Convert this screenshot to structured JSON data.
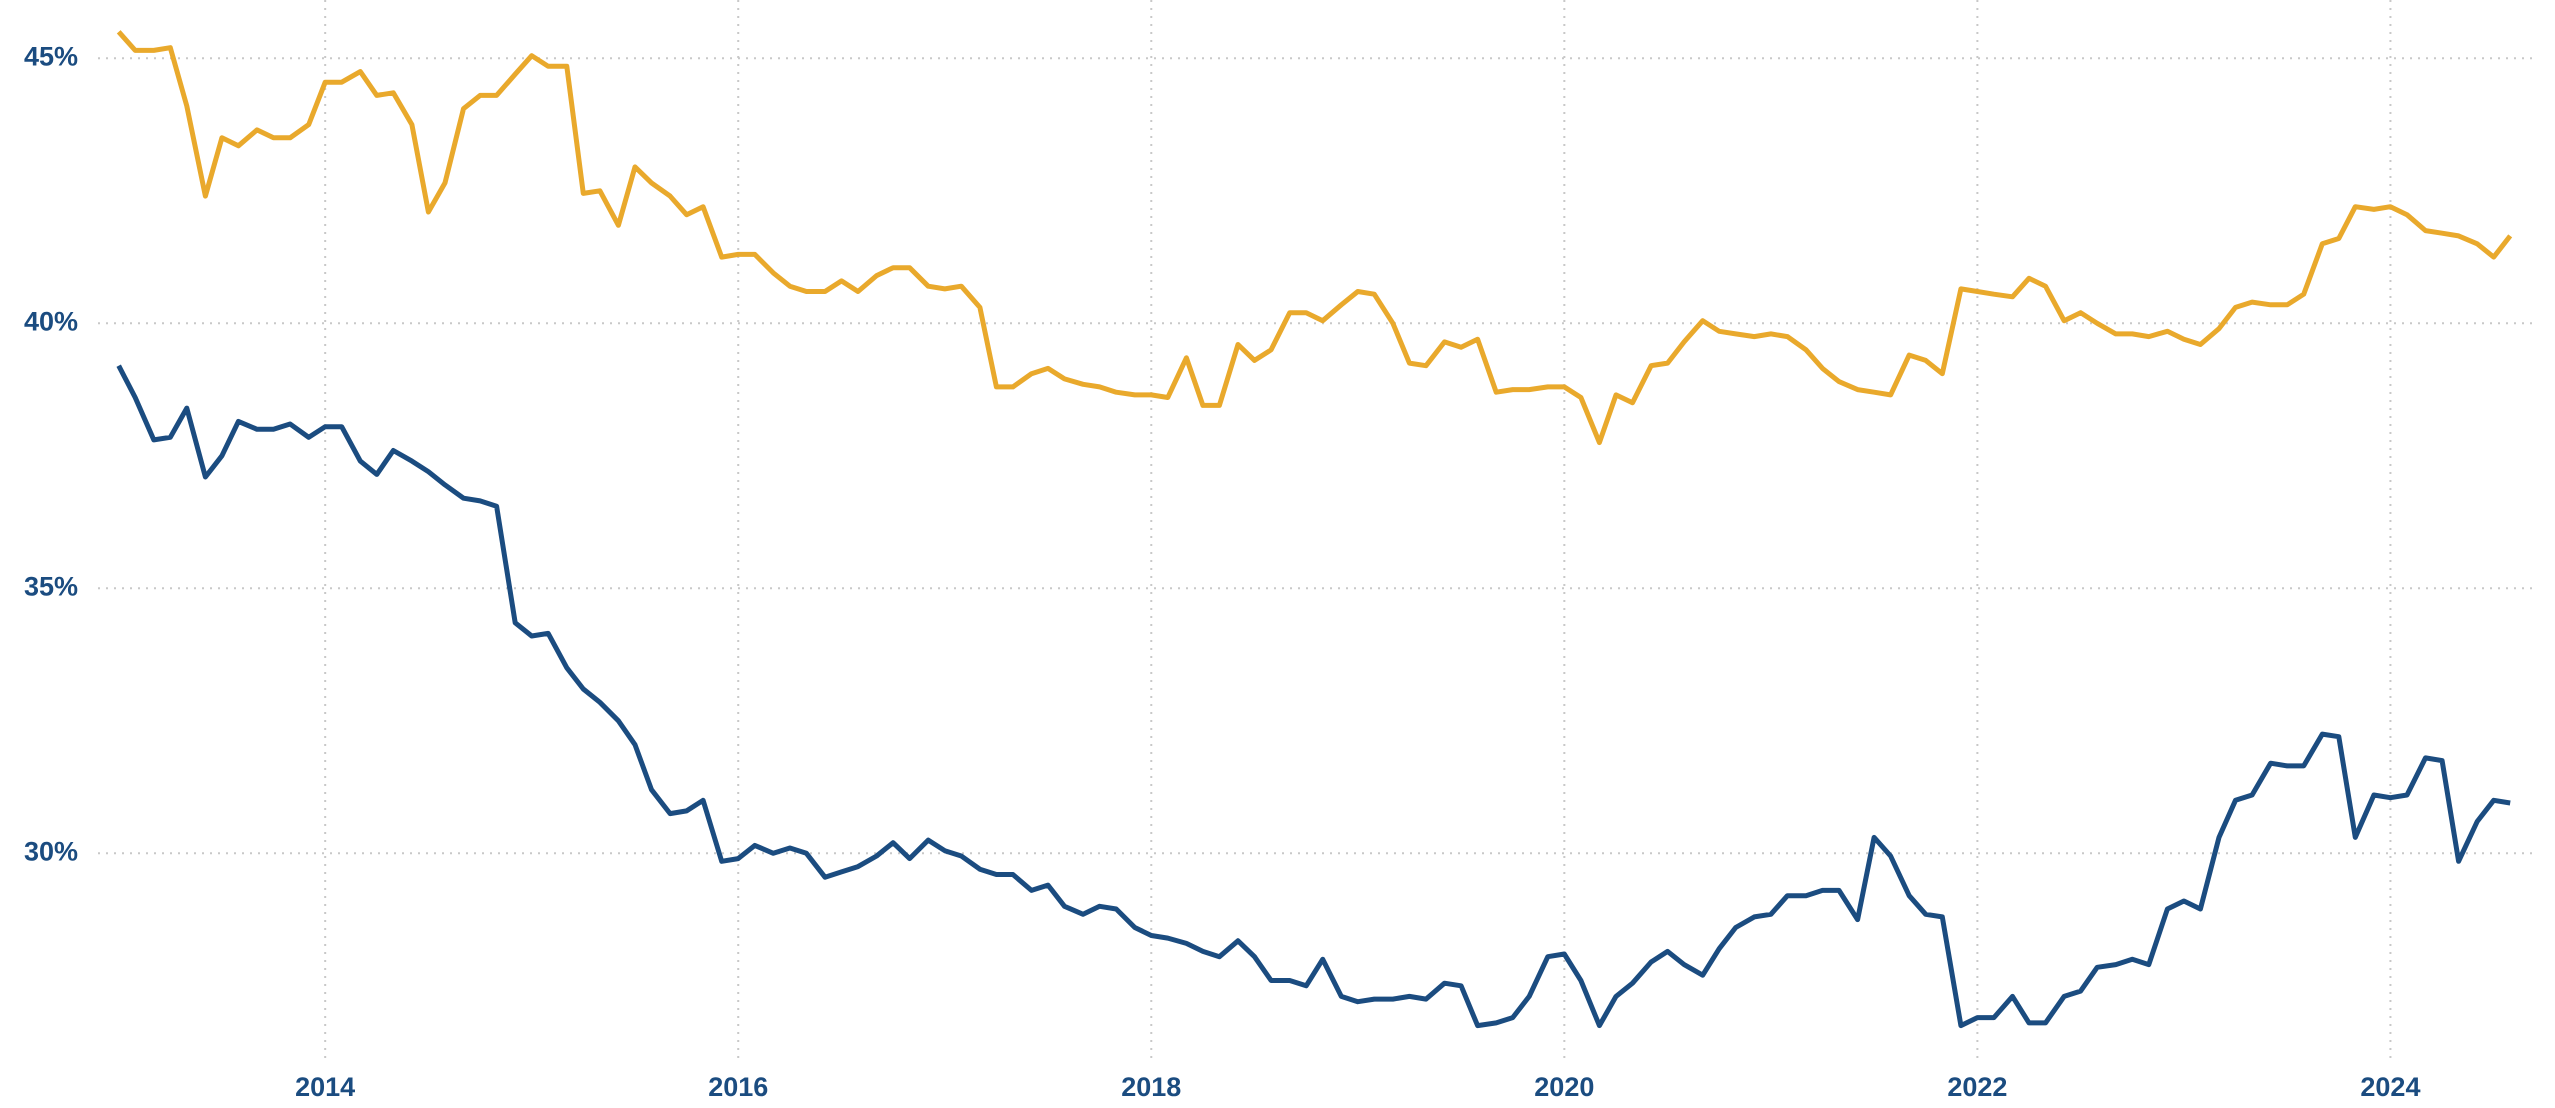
{
  "chart_data": {
    "type": "line",
    "x": [
      2013.0,
      2013.08,
      2013.17,
      2013.25,
      2013.33,
      2013.42,
      2013.5,
      2013.58,
      2013.67,
      2013.75,
      2013.83,
      2013.92,
      2014.0,
      2014.08,
      2014.17,
      2014.25,
      2014.33,
      2014.42,
      2014.5,
      2014.58,
      2014.67,
      2014.75,
      2014.83,
      2014.92,
      2015.0,
      2015.08,
      2015.17,
      2015.25,
      2015.33,
      2015.42,
      2015.5,
      2015.58,
      2015.67,
      2015.75,
      2015.83,
      2015.92,
      2016.0,
      2016.08,
      2016.17,
      2016.25,
      2016.33,
      2016.42,
      2016.5,
      2016.58,
      2016.67,
      2016.75,
      2016.83,
      2016.92,
      2017.0,
      2017.08,
      2017.17,
      2017.25,
      2017.33,
      2017.42,
      2017.5,
      2017.58,
      2017.67,
      2017.75,
      2017.83,
      2017.92,
      2018.0,
      2018.08,
      2018.17,
      2018.25,
      2018.33,
      2018.42,
      2018.5,
      2018.58,
      2018.67,
      2018.75,
      2018.83,
      2018.92,
      2019.0,
      2019.08,
      2019.17,
      2019.25,
      2019.33,
      2019.42,
      2019.5,
      2019.58,
      2019.67,
      2019.75,
      2019.83,
      2019.92,
      2020.0,
      2020.08,
      2020.17,
      2020.25,
      2020.33,
      2020.42,
      2020.5,
      2020.58,
      2020.67,
      2020.75,
      2020.83,
      2020.92,
      2021.0,
      2021.08,
      2021.17,
      2021.25,
      2021.33,
      2021.42,
      2021.5,
      2021.58,
      2021.67,
      2021.75,
      2021.83,
      2021.92,
      2022.0,
      2022.08,
      2022.17,
      2022.25,
      2022.33,
      2022.42,
      2022.5,
      2022.58,
      2022.67,
      2022.75,
      2022.83,
      2022.92,
      2023.0,
      2023.08,
      2023.17,
      2023.25,
      2023.33,
      2023.42,
      2023.5,
      2023.58,
      2023.67,
      2023.75,
      2023.83,
      2023.92,
      2024.0,
      2024.08,
      2024.17,
      2024.25,
      2024.33,
      2024.42,
      2024.5,
      2024.58
    ],
    "series": [
      {
        "color": "#e9a92c",
        "values": [
          45.5,
          45.15,
          45.15,
          45.2,
          44.1,
          42.4,
          43.5,
          43.35,
          43.65,
          43.5,
          43.5,
          43.75,
          44.55,
          44.55,
          44.75,
          44.3,
          44.35,
          43.75,
          42.1,
          42.65,
          44.05,
          44.3,
          44.3,
          44.7,
          45.05,
          44.85,
          44.85,
          42.45,
          42.5,
          41.85,
          42.95,
          42.65,
          42.4,
          42.05,
          42.2,
          41.25,
          41.3,
          41.3,
          40.95,
          40.7,
          40.6,
          40.6,
          40.8,
          40.6,
          40.9,
          41.05,
          41.05,
          40.7,
          40.65,
          40.7,
          40.3,
          38.8,
          38.8,
          39.05,
          39.15,
          38.95,
          38.85,
          38.8,
          38.7,
          38.65,
          38.65,
          38.6,
          39.35,
          38.45,
          38.45,
          39.6,
          39.3,
          39.5,
          40.2,
          40.2,
          40.05,
          40.35,
          40.6,
          40.55,
          40.0,
          39.25,
          39.2,
          39.65,
          39.55,
          39.7,
          38.7,
          38.75,
          38.75,
          38.8,
          38.8,
          38.6,
          37.75,
          38.65,
          38.5,
          39.2,
          39.25,
          39.65,
          40.05,
          39.85,
          39.8,
          39.75,
          39.8,
          39.75,
          39.5,
          39.15,
          38.9,
          38.75,
          38.7,
          38.65,
          39.4,
          39.3,
          39.05,
          40.65,
          40.6,
          40.55,
          40.5,
          40.85,
          40.7,
          40.05,
          40.2,
          40.0,
          39.8,
          39.8,
          39.75,
          39.85,
          39.7,
          39.6,
          39.9,
          40.3,
          40.4,
          40.35,
          40.35,
          40.55,
          41.5,
          41.6,
          42.2,
          42.15,
          42.2,
          42.05,
          41.75,
          41.7,
          41.65,
          41.5,
          41.25,
          41.65
        ]
      },
      {
        "color": "#1b4c80",
        "values": [
          39.2,
          38.6,
          37.8,
          37.85,
          38.4,
          37.1,
          37.5,
          38.15,
          38.0,
          38.0,
          38.1,
          37.85,
          38.05,
          38.05,
          37.4,
          37.15,
          37.6,
          37.4,
          37.2,
          36.95,
          36.7,
          36.65,
          36.55,
          34.35,
          34.1,
          34.15,
          33.5,
          33.1,
          32.85,
          32.5,
          32.05,
          31.2,
          30.75,
          30.8,
          31.0,
          29.85,
          29.9,
          30.15,
          30.0,
          30.1,
          30.0,
          29.55,
          29.65,
          29.75,
          29.95,
          30.2,
          29.9,
          30.25,
          30.05,
          29.95,
          29.7,
          29.6,
          29.6,
          29.3,
          29.4,
          29.0,
          28.85,
          29.0,
          28.95,
          28.6,
          28.45,
          28.4,
          28.3,
          28.15,
          28.05,
          28.35,
          28.05,
          27.6,
          27.6,
          27.5,
          28.0,
          27.3,
          27.2,
          27.25,
          27.25,
          27.3,
          27.25,
          27.55,
          27.5,
          26.75,
          26.8,
          26.9,
          27.3,
          28.05,
          28.1,
          27.6,
          26.75,
          27.3,
          27.55,
          27.95,
          28.15,
          27.9,
          27.7,
          28.2,
          28.6,
          28.8,
          28.85,
          29.2,
          29.2,
          29.3,
          29.3,
          28.75,
          30.3,
          29.95,
          29.2,
          28.85,
          28.8,
          26.75,
          26.9,
          26.9,
          27.3,
          26.8,
          26.8,
          27.3,
          27.4,
          27.85,
          27.9,
          28.0,
          27.9,
          28.95,
          29.1,
          28.95,
          30.3,
          31.0,
          31.1,
          31.7,
          31.65,
          31.65,
          32.25,
          32.2,
          30.3,
          31.1,
          31.05,
          31.1,
          31.8,
          31.75,
          29.85,
          30.6,
          31.0,
          30.95
        ]
      }
    ],
    "xlim": [
      2012.9,
      2024.7
    ],
    "xticks": [
      2014,
      2016,
      2018,
      2020,
      2022,
      2024
    ],
    "ylim": [
      26.1,
      46.1
    ],
    "yticks": [
      {
        "value": 30,
        "label": "30%"
      },
      {
        "value": 35,
        "label": "35%"
      },
      {
        "value": 40,
        "label": "40%"
      },
      {
        "value": 45,
        "label": "45%"
      }
    ],
    "grid": true
  }
}
